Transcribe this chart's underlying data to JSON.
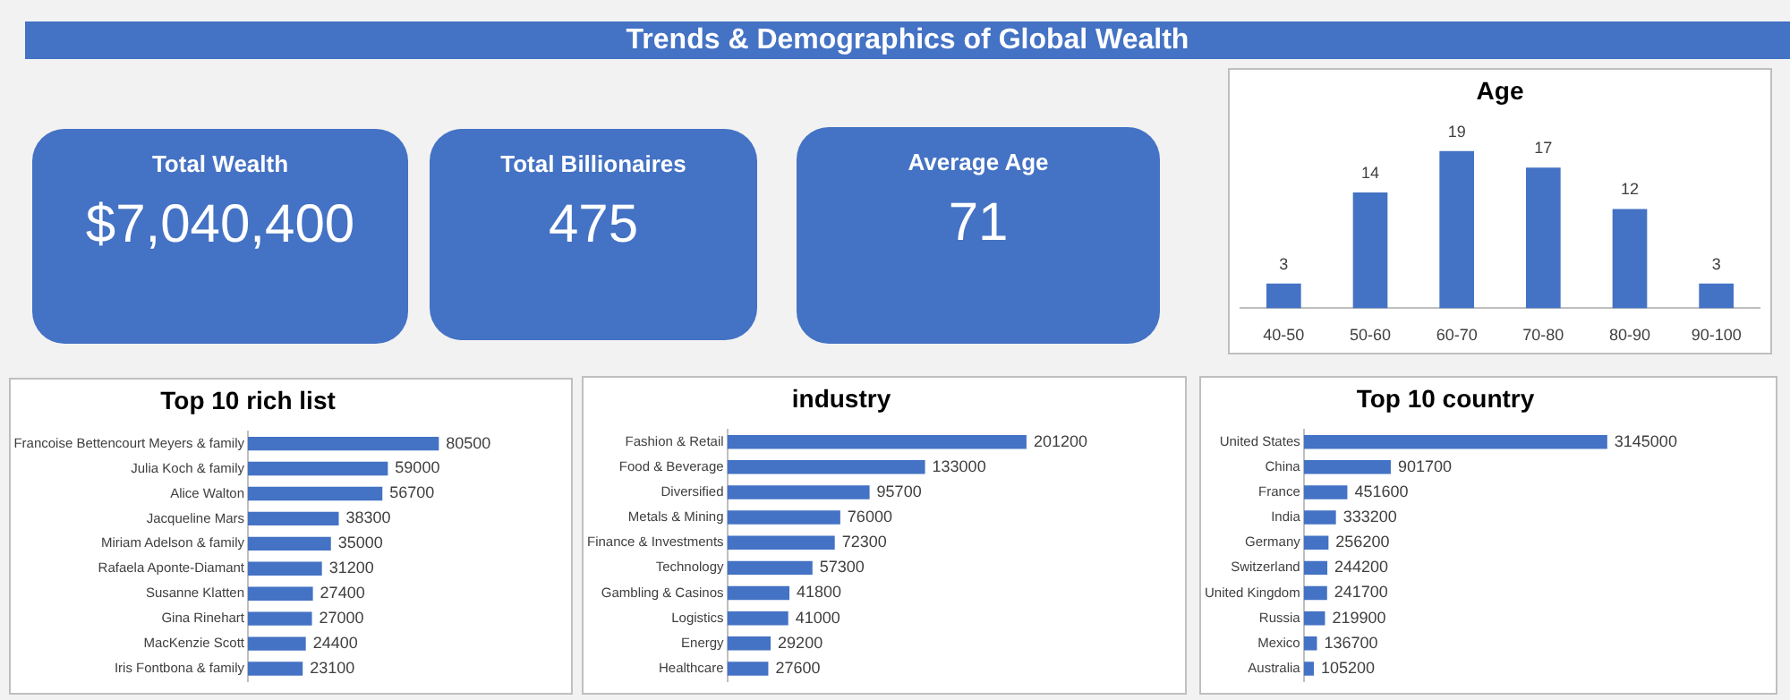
{
  "chart_data": [
    {
      "type": "other",
      "title": "Trends & Demographics of Global Wealth",
      "annotations": [
        "Total Wealth",
        "$7,040,400",
        "Total Billionaires",
        "475",
        "Average Age",
        "71"
      ],
      "color": "#4472c4"
    },
    {
      "type": "bar",
      "title": "Age",
      "categories": [
        "40-50",
        "50-60",
        "60-70",
        "70-80",
        "80-90",
        "90-100"
      ],
      "values": [
        3,
        14,
        19,
        17,
        12,
        3
      ],
      "color": "#4472c4",
      "data_labels": true,
      "tick_labels": "x"
    },
    {
      "type": "bar",
      "title": "Top 10 rich list",
      "orientation": "horizontal",
      "categories": [
        "Francoise Bettencourt Meyers & family",
        "Julia Koch & family",
        "Alice Walton",
        "Jacqueline Mars",
        "Miriam Adelson & family",
        "Rafaela Aponte-Diamant",
        "Susanne Klatten",
        "Gina Rinehart",
        "MacKenzie Scott",
        "Iris Fontbona & family"
      ],
      "values": [
        80500,
        59000,
        56700,
        38300,
        35000,
        31200,
        27400,
        27000,
        24400,
        23100
      ],
      "color": "#4472c4",
      "data_labels": true,
      "tick_labels": "y"
    },
    {
      "type": "bar",
      "title": "industry",
      "orientation": "horizontal",
      "categories": [
        "Fashion & Retail",
        "Food & Beverage",
        "Diversified",
        "Metals & Mining",
        "Finance & Investments",
        "Technology",
        "Gambling & Casinos",
        "Logistics",
        "Energy",
        "Healthcare"
      ],
      "values": [
        201200,
        133000,
        95700,
        76000,
        72300,
        57300,
        41800,
        41000,
        29200,
        27600
      ],
      "color": "#4472c4",
      "data_labels": true,
      "tick_labels": "y"
    },
    {
      "type": "bar",
      "title": "Top 10 country",
      "orientation": "horizontal",
      "categories": [
        "United States",
        "China",
        "France",
        "India",
        "Germany",
        "Switzerland",
        "United Kingdom",
        "Russia",
        "Mexico",
        "Australia"
      ],
      "values": [
        3145000,
        901700,
        451600,
        333200,
        256200,
        244200,
        241700,
        219900,
        136700,
        105200
      ],
      "color": "#4472c4",
      "data_labels": true,
      "tick_labels": "y"
    }
  ]
}
